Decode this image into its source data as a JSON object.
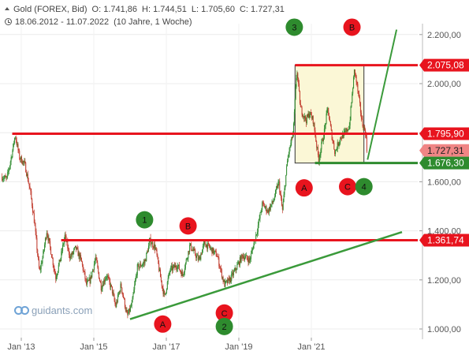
{
  "header": {
    "instrument": "Gold (FOREX, Bid)",
    "open": "O: 1.741,86",
    "high": "H: 1.744,51",
    "low": "L: 1.705,60",
    "close": "C: 1.727,31",
    "range": "18.06.2012 - 11.07.2022",
    "period": "(10 Jahre, 1 Woche)"
  },
  "logo": {
    "text": "guidants.com"
  },
  "colors": {
    "red": "#e8141e",
    "green": "#2e8b2e",
    "candle_up": "#2e8b2e",
    "candle_down": "#c0392b",
    "box_fill": "#fbf7d6"
  },
  "chart_data": {
    "type": "candlestick",
    "title": "Gold (FOREX, Bid)",
    "x_range": [
      "2012-06-18",
      "2022-07-11"
    ],
    "xticks": [
      {
        "label": "Jan '13",
        "x": 2013.0
      },
      {
        "label": "Jan '15",
        "x": 2015.0
      },
      {
        "label": "Jan '17",
        "x": 2017.0
      },
      {
        "label": "Jan '19",
        "x": 2019.0
      },
      {
        "label": "Jan '21",
        "x": 2021.0
      }
    ],
    "ylim": [
      950,
      2250
    ],
    "yticks": [
      {
        "label": "1.000,00",
        "value": 1000
      },
      {
        "label": "1.200,00",
        "value": 1200
      },
      {
        "label": "1.400,00",
        "value": 1400
      },
      {
        "label": "1.600,00",
        "value": 1600
      },
      {
        "label": "1.800,00",
        "value": 1800
      },
      {
        "label": "2.000,00",
        "value": 2000
      },
      {
        "label": "2.200,00",
        "value": 2200
      }
    ],
    "price_path": [
      [
        2012.47,
        1620
      ],
      [
        2012.6,
        1610
      ],
      [
        2012.75,
        1720
      ],
      [
        2012.83,
        1790
      ],
      [
        2012.95,
        1700
      ],
      [
        2013.1,
        1670
      ],
      [
        2013.25,
        1560
      ],
      [
        2013.35,
        1450
      ],
      [
        2013.5,
        1230
      ],
      [
        2013.6,
        1300
      ],
      [
        2013.7,
        1400
      ],
      [
        2013.8,
        1330
      ],
      [
        2013.95,
        1210
      ],
      [
        2014.1,
        1300
      ],
      [
        2014.2,
        1380
      ],
      [
        2014.35,
        1290
      ],
      [
        2014.5,
        1330
      ],
      [
        2014.65,
        1280
      ],
      [
        2014.8,
        1180
      ],
      [
        2014.9,
        1200
      ],
      [
        2015.05,
        1290
      ],
      [
        2015.2,
        1170
      ],
      [
        2015.35,
        1220
      ],
      [
        2015.5,
        1160
      ],
      [
        2015.6,
        1090
      ],
      [
        2015.75,
        1180
      ],
      [
        2015.92,
        1050
      ],
      [
        2016.05,
        1100
      ],
      [
        2016.2,
        1250
      ],
      [
        2016.4,
        1270
      ],
      [
        2016.55,
        1360
      ],
      [
        2016.7,
        1330
      ],
      [
        2016.85,
        1200
      ],
      [
        2016.95,
        1130
      ],
      [
        2017.1,
        1240
      ],
      [
        2017.3,
        1260
      ],
      [
        2017.45,
        1220
      ],
      [
        2017.65,
        1340
      ],
      [
        2017.9,
        1280
      ],
      [
        2018.05,
        1350
      ],
      [
        2018.2,
        1330
      ],
      [
        2018.4,
        1300
      ],
      [
        2018.6,
        1180
      ],
      [
        2018.75,
        1200
      ],
      [
        2018.9,
        1240
      ],
      [
        2019.1,
        1300
      ],
      [
        2019.3,
        1280
      ],
      [
        2019.5,
        1400
      ],
      [
        2019.65,
        1510
      ],
      [
        2019.8,
        1480
      ],
      [
        2019.95,
        1520
      ],
      [
        2020.1,
        1600
      ],
      [
        2020.2,
        1480
      ],
      [
        2020.35,
        1700
      ],
      [
        2020.5,
        1800
      ],
      [
        2020.6,
        2060
      ],
      [
        2020.7,
        1900
      ],
      [
        2020.85,
        1850
      ],
      [
        2020.95,
        1880
      ],
      [
        2021.05,
        1850
      ],
      [
        2021.2,
        1690
      ],
      [
        2021.35,
        1800
      ],
      [
        2021.45,
        1900
      ],
      [
        2021.55,
        1800
      ],
      [
        2021.65,
        1720
      ],
      [
        2021.8,
        1780
      ],
      [
        2021.95,
        1800
      ],
      [
        2022.05,
        1830
      ],
      [
        2022.19,
        2060
      ],
      [
        2022.3,
        1950
      ],
      [
        2022.4,
        1840
      ],
      [
        2022.5,
        1800
      ],
      [
        2022.53,
        1727
      ]
    ],
    "levels": [
      {
        "value": 2075.08,
        "label": "2.075,08",
        "color": "#e8141e"
      },
      {
        "value": 1795.9,
        "label": "1.795,90",
        "color": "#e8141e"
      },
      {
        "value": 1727.31,
        "label": "1.727,31",
        "color": "#f08585"
      },
      {
        "value": 1676.3,
        "label": "1.676,30",
        "color": "#2e8b2e"
      },
      {
        "value": 1361.74,
        "label": "1.361,74",
        "color": "#e8141e"
      }
    ],
    "support_line": {
      "from": [
        2016.0,
        1040
      ],
      "to": [
        2023.5,
        1395
      ]
    },
    "forecast_line": {
      "from": [
        2022.55,
        1690
      ],
      "to": [
        2023.35,
        2220
      ]
    },
    "box": {
      "x0": 2020.55,
      "x1": 2022.45,
      "y0": 1676.3,
      "y1": 2075.08
    },
    "wave_markers": [
      {
        "label": "3",
        "x": 2020.53,
        "y": 2230,
        "color": "green"
      },
      {
        "label": "B",
        "x": 2022.12,
        "y": 2230,
        "color": "red"
      },
      {
        "label": "5",
        "x": 2023.5,
        "y": 2420,
        "color": "green"
      },
      {
        "label": "A",
        "x": 2020.8,
        "y": 1575,
        "color": "red"
      },
      {
        "label": "C",
        "x": 2022.0,
        "y": 1580,
        "color": "red"
      },
      {
        "label": "4",
        "x": 2022.45,
        "y": 1580,
        "color": "green"
      },
      {
        "label": "1",
        "x": 2016.4,
        "y": 1445,
        "color": "green"
      },
      {
        "label": "B",
        "x": 2017.6,
        "y": 1420,
        "color": "red"
      },
      {
        "label": "A",
        "x": 2016.9,
        "y": 1020,
        "color": "red"
      },
      {
        "label": "C",
        "x": 2018.6,
        "y": 1065,
        "color": "red"
      },
      {
        "label": "2",
        "x": 2018.6,
        "y": 1010,
        "color": "green"
      }
    ]
  }
}
